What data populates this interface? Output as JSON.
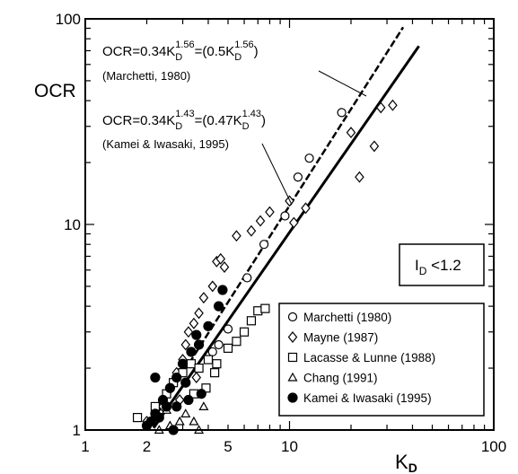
{
  "chart_data": {
    "type": "scatter",
    "x_scale": "log",
    "y_scale": "log",
    "xlim": [
      1,
      100
    ],
    "ylim": [
      1,
      100
    ],
    "xlabel": "K",
    "xlabel_sub": "D",
    "ylabel": "OCR",
    "x_ticks": [
      {
        "value": 1,
        "label": "1"
      },
      {
        "value": 2,
        "label": "2"
      },
      {
        "value": 5,
        "label": "5"
      },
      {
        "value": 10,
        "label": "10"
      },
      {
        "value": 100,
        "label": "100"
      }
    ],
    "y_ticks": [
      {
        "value": 1,
        "label": "1"
      },
      {
        "value": 10,
        "label": "10"
      },
      {
        "value": 100,
        "label": "100"
      }
    ],
    "annotations": {
      "marchetti_eq": {
        "prefix": "OCR=0.34K",
        "sub1": "D",
        "sup1": "1.56",
        "mid": "=(0.5K",
        "sub2": "D",
        "sup2": "1.56",
        "suffix": ")",
        "source": "(Marchetti, 1980)"
      },
      "kamei_eq": {
        "prefix": "OCR=0.34K",
        "sub1": "D",
        "sup1": "1.43",
        "mid": "=(0.47K",
        "sub2": "D",
        "sup2": "1.43",
        "suffix": ")",
        "source": "(Kamei & Iwasaki, 1995)"
      },
      "condition": {
        "prefix": "I",
        "sub": "D",
        "suffix": " <1.2"
      }
    },
    "lines": [
      {
        "name": "Marchetti",
        "style": "dashed",
        "k": 0.34,
        "exp": 1.56,
        "x_range": [
          2.0,
          36
        ]
      },
      {
        "name": "Kamei",
        "style": "solid",
        "k": 0.34,
        "exp": 1.43,
        "x_range": [
          2.16,
          43
        ]
      }
    ],
    "legend_position": "bottom-right",
    "series": [
      {
        "name": "Marchetti (1980)",
        "marker": "circle-open",
        "points": [
          [
            4.2,
            2.4
          ],
          [
            4.5,
            2.6
          ],
          [
            5.0,
            3.1
          ],
          [
            6.2,
            5.5
          ],
          [
            7.5,
            8.0
          ],
          [
            9.5,
            11
          ],
          [
            11,
            17
          ],
          [
            12.5,
            21
          ],
          [
            18,
            35
          ]
        ]
      },
      {
        "name": "Mayne (1987)",
        "marker": "diamond-open",
        "points": [
          [
            2.0,
            1.1
          ],
          [
            2.2,
            1.2
          ],
          [
            2.4,
            1.3
          ],
          [
            2.6,
            1.6
          ],
          [
            2.8,
            1.9
          ],
          [
            3.0,
            2.2
          ],
          [
            3.1,
            2.6
          ],
          [
            3.2,
            3.0
          ],
          [
            3.4,
            3.3
          ],
          [
            3.6,
            3.7
          ],
          [
            3.8,
            4.4
          ],
          [
            4.2,
            5.0
          ],
          [
            4.4,
            6.6
          ],
          [
            4.6,
            6.8
          ],
          [
            4.8,
            6.2
          ],
          [
            5.5,
            8.8
          ],
          [
            6.5,
            9.3
          ],
          [
            7.2,
            10.4
          ],
          [
            8.0,
            11.5
          ],
          [
            10,
            13
          ],
          [
            10.5,
            10.2
          ],
          [
            12,
            12
          ],
          [
            20,
            28
          ],
          [
            28,
            37
          ],
          [
            32,
            38
          ],
          [
            26,
            24
          ],
          [
            22,
            17
          ],
          [
            3.5,
            1.8
          ],
          [
            2.9,
            1.4
          ]
        ]
      },
      {
        "name": "Lacasse & Lunne (1988)",
        "marker": "square-open",
        "points": [
          [
            1.8,
            1.15
          ],
          [
            2.2,
            1.3
          ],
          [
            2.5,
            1.5
          ],
          [
            2.7,
            1.7
          ],
          [
            3.0,
            1.9
          ],
          [
            3.3,
            2.1
          ],
          [
            3.6,
            2.0
          ],
          [
            4.0,
            2.2
          ],
          [
            4.4,
            2.1
          ],
          [
            5.0,
            2.5
          ],
          [
            5.5,
            2.7
          ],
          [
            6.0,
            3.0
          ],
          [
            6.5,
            3.4
          ],
          [
            7.0,
            3.8
          ],
          [
            7.6,
            3.9
          ],
          [
            3.9,
            1.6
          ],
          [
            4.3,
            1.9
          ],
          [
            3.4,
            1.5
          ]
        ]
      },
      {
        "name": "Chang (1991)",
        "marker": "triangle-open",
        "points": [
          [
            2.3,
            1.0
          ],
          [
            2.6,
            1.05
          ],
          [
            2.9,
            1.1
          ],
          [
            3.1,
            1.2
          ],
          [
            3.4,
            1.1
          ],
          [
            3.8,
            1.3
          ],
          [
            2.5,
            1.25
          ],
          [
            3.6,
            1.0
          ]
        ]
      },
      {
        "name": "Kamei & Iwasaki (1995)",
        "marker": "circle-filled",
        "points": [
          [
            2.0,
            1.05
          ],
          [
            2.1,
            1.1
          ],
          [
            2.2,
            1.2
          ],
          [
            2.3,
            1.15
          ],
          [
            2.4,
            1.4
          ],
          [
            2.5,
            1.3
          ],
          [
            2.6,
            1.6
          ],
          [
            2.8,
            1.8
          ],
          [
            3.0,
            2.1
          ],
          [
            3.1,
            1.7
          ],
          [
            3.3,
            2.4
          ],
          [
            3.5,
            2.9
          ],
          [
            3.7,
            1.5
          ],
          [
            4.0,
            3.2
          ],
          [
            4.5,
            4.0
          ],
          [
            4.7,
            4.8
          ],
          [
            2.2,
            1.8
          ],
          [
            2.8,
            1.3
          ],
          [
            3.2,
            1.4
          ],
          [
            2.7,
            1.0
          ],
          [
            3.6,
            2.6
          ]
        ]
      }
    ]
  }
}
